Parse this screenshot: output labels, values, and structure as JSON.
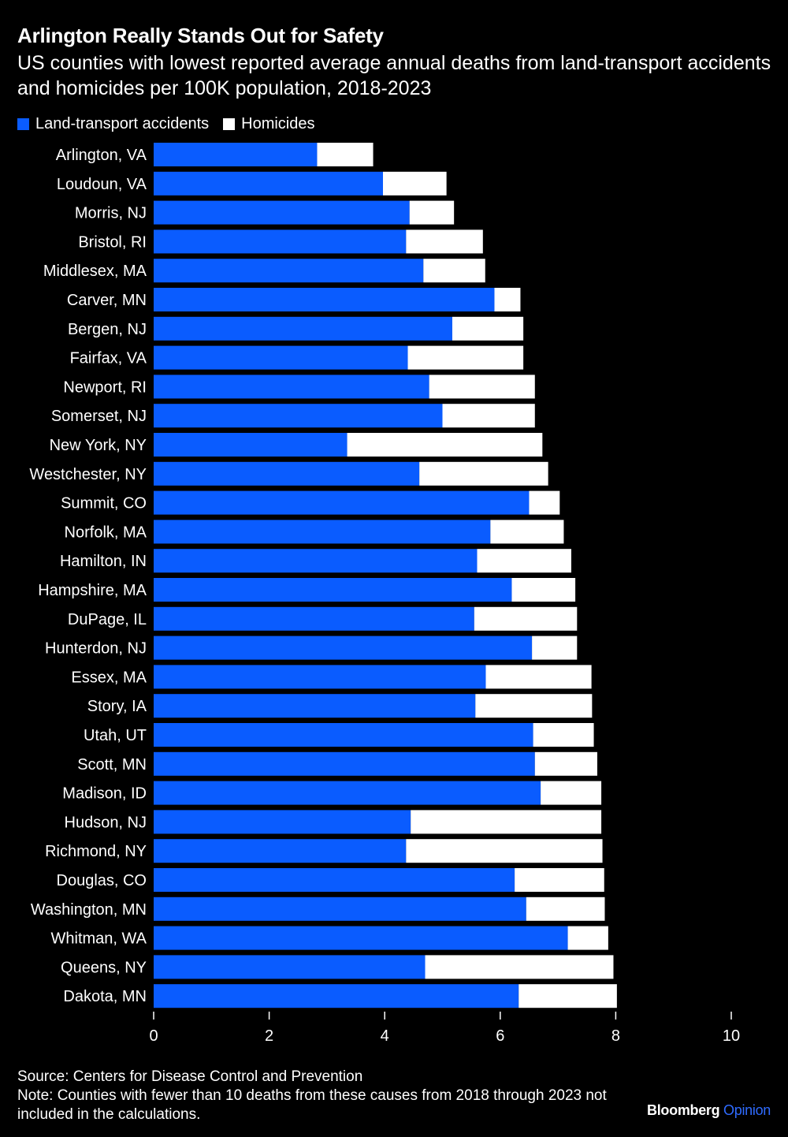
{
  "header": {
    "title": "Arlington Really Stands Out for Safety",
    "subtitle": "US counties with lowest reported average annual deaths from land-transport accidents and homicides per 100K population, 2018-2023"
  },
  "legend": {
    "items": [
      {
        "label": "Land-transport accidents",
        "color": "#0a5cff"
      },
      {
        "label": "Homicides",
        "color": "#ffffff"
      }
    ]
  },
  "chart_data": {
    "type": "bar",
    "orientation": "horizontal",
    "stacked": true,
    "title": "Arlington Really Stands Out for Safety",
    "xlabel": "",
    "ylabel": "",
    "xlim": [
      0,
      10
    ],
    "xticks": [
      0,
      2,
      4,
      6,
      8,
      10
    ],
    "categories": [
      "Arlington, VA",
      "Loudoun, VA",
      "Morris, NJ",
      "Bristol, RI",
      "Middlesex, MA",
      "Carver, MN",
      "Bergen, NJ",
      "Fairfax, VA",
      "Newport, RI",
      "Somerset, NJ",
      "New York, NY",
      "Westchester, NY",
      "Summit, CO",
      "Norfolk, MA",
      "Hamilton, IN",
      "Hampshire, MA",
      "DuPage, IL",
      "Hunterdon, NJ",
      "Essex, MA",
      "Story, IA",
      "Utah, UT",
      "Scott, MN",
      "Madison, ID",
      "Hudson, NJ",
      "Richmond, NY",
      "Douglas, CO",
      "Washington, MN",
      "Whitman, WA",
      "Queens, NY",
      "Dakota, MN"
    ],
    "series": [
      {
        "name": "Land-transport accidents",
        "color": "#0a5cff",
        "values": [
          2.83,
          3.97,
          4.43,
          4.37,
          4.67,
          5.9,
          5.17,
          4.4,
          4.77,
          5.0,
          3.35,
          4.6,
          6.5,
          5.83,
          5.6,
          6.2,
          5.55,
          6.55,
          5.75,
          5.57,
          6.57,
          6.6,
          6.7,
          4.45,
          4.37,
          6.25,
          6.45,
          7.17,
          4.7,
          6.32
        ]
      },
      {
        "name": "Homicides",
        "color": "#ffffff",
        "values": [
          0.97,
          1.1,
          0.77,
          1.33,
          1.07,
          0.45,
          1.23,
          2.0,
          1.83,
          1.6,
          3.38,
          2.23,
          0.53,
          1.27,
          1.63,
          1.1,
          1.78,
          0.78,
          1.83,
          2.02,
          1.05,
          1.08,
          1.05,
          3.3,
          3.4,
          1.55,
          1.36,
          0.7,
          3.26,
          1.7
        ]
      }
    ]
  },
  "footer": {
    "source": "Source: Centers for Disease Control and Prevention",
    "note": "Note: Counties with fewer than 10 deaths from these causes from 2018 through 2023 not included in the calculations."
  },
  "brand": {
    "name": "Bloomberg",
    "section": "Opinion"
  }
}
